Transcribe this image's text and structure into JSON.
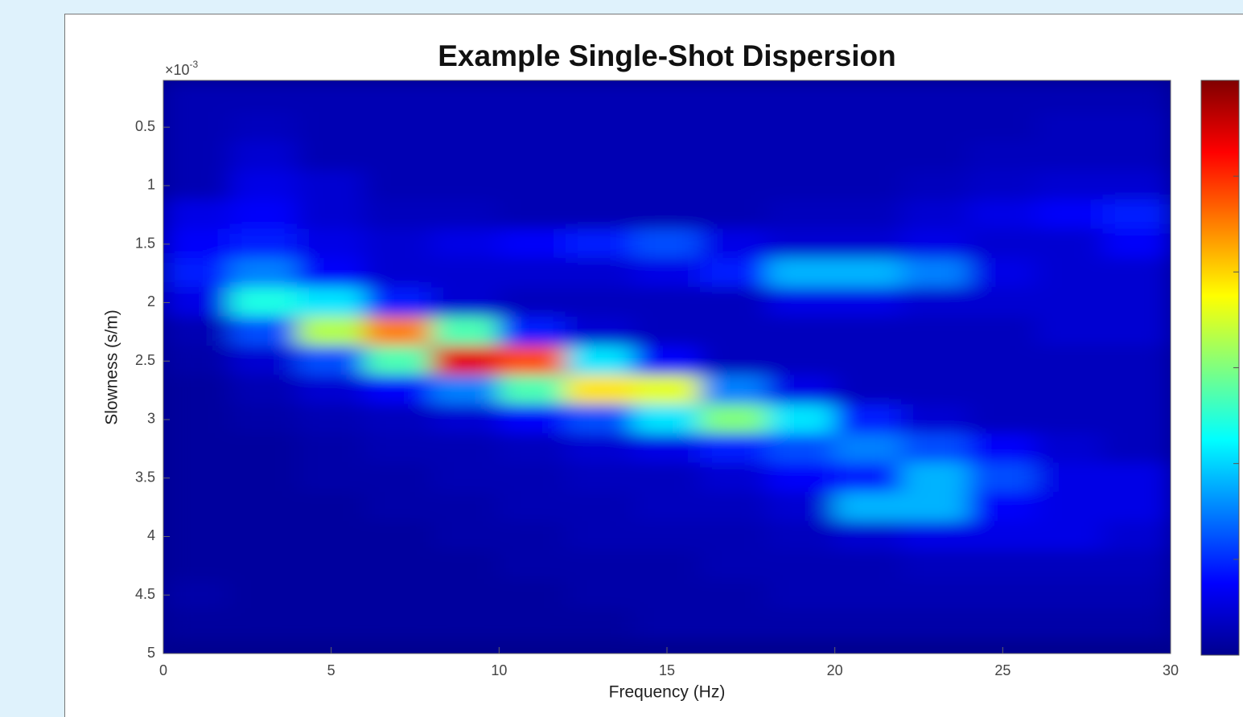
{
  "chart_data": {
    "type": "heatmap",
    "title": "Example Single-Shot Dispersion",
    "x_label": "Frequency (Hz)",
    "y_label": "Slowness (s/m)",
    "y_exponent_label": {
      "base": "×10",
      "exponent": "-3"
    },
    "xlim": [
      0,
      30
    ],
    "xticks": [
      0,
      5,
      10,
      15,
      20,
      25,
      30
    ],
    "ylim": [
      0.1,
      5
    ],
    "yticks": [
      0.5,
      1,
      1.5,
      2,
      2.5,
      3,
      3.5,
      4,
      4.5,
      5
    ],
    "y_reversed": true,
    "colormap": "jet",
    "clim": [
      0,
      1
    ],
    "colorbar": true,
    "x": [
      1,
      3,
      5,
      7,
      9,
      11,
      13,
      15,
      17,
      19,
      21,
      23,
      25,
      27,
      29
    ],
    "y": [
      0.25,
      0.5,
      0.75,
      1,
      1.25,
      1.5,
      1.75,
      2,
      2.25,
      2.5,
      2.75,
      3,
      3.25,
      3.5,
      3.75,
      4,
      4.25,
      4.5,
      4.75
    ],
    "z": [
      [
        0.05,
        0.05,
        0.05,
        0.05,
        0.05,
        0.05,
        0.05,
        0.05,
        0.05,
        0.05,
        0.05,
        0.05,
        0.05,
        0.05,
        0.05
      ],
      [
        0.05,
        0.06,
        0.05,
        0.05,
        0.05,
        0.05,
        0.05,
        0.05,
        0.05,
        0.05,
        0.05,
        0.05,
        0.05,
        0.06,
        0.06
      ],
      [
        0.05,
        0.08,
        0.05,
        0.05,
        0.05,
        0.05,
        0.05,
        0.05,
        0.05,
        0.05,
        0.05,
        0.05,
        0.06,
        0.06,
        0.06
      ],
      [
        0.05,
        0.1,
        0.08,
        0.05,
        0.05,
        0.05,
        0.05,
        0.05,
        0.05,
        0.05,
        0.05,
        0.06,
        0.07,
        0.08,
        0.08
      ],
      [
        0.1,
        0.12,
        0.08,
        0.06,
        0.06,
        0.05,
        0.05,
        0.05,
        0.05,
        0.06,
        0.06,
        0.08,
        0.1,
        0.12,
        0.15
      ],
      [
        0.12,
        0.15,
        0.1,
        0.08,
        0.1,
        0.12,
        0.15,
        0.2,
        0.1,
        0.08,
        0.08,
        0.1,
        0.08,
        0.08,
        0.12
      ],
      [
        0.15,
        0.25,
        0.12,
        0.08,
        0.08,
        0.08,
        0.08,
        0.1,
        0.15,
        0.3,
        0.3,
        0.25,
        0.1,
        0.08,
        0.08
      ],
      [
        0.1,
        0.4,
        0.35,
        0.15,
        0.08,
        0.06,
        0.06,
        0.06,
        0.06,
        0.1,
        0.1,
        0.08,
        0.08,
        0.08,
        0.08
      ],
      [
        0.05,
        0.2,
        0.55,
        0.75,
        0.45,
        0.15,
        0.08,
        0.06,
        0.06,
        0.06,
        0.06,
        0.06,
        0.06,
        0.08,
        0.08
      ],
      [
        0.04,
        0.08,
        0.2,
        0.45,
        0.9,
        0.8,
        0.35,
        0.12,
        0.06,
        0.06,
        0.06,
        0.06,
        0.06,
        0.06,
        0.06
      ],
      [
        0.03,
        0.05,
        0.08,
        0.12,
        0.25,
        0.45,
        0.65,
        0.6,
        0.25,
        0.1,
        0.06,
        0.06,
        0.06,
        0.06,
        0.06
      ],
      [
        0.03,
        0.04,
        0.05,
        0.06,
        0.08,
        0.12,
        0.2,
        0.35,
        0.5,
        0.35,
        0.15,
        0.08,
        0.06,
        0.06,
        0.06
      ],
      [
        0.03,
        0.03,
        0.04,
        0.05,
        0.05,
        0.06,
        0.08,
        0.1,
        0.15,
        0.2,
        0.25,
        0.2,
        0.12,
        0.08,
        0.06
      ],
      [
        0.03,
        0.03,
        0.04,
        0.04,
        0.05,
        0.05,
        0.06,
        0.06,
        0.08,
        0.12,
        0.15,
        0.3,
        0.2,
        0.1,
        0.1
      ],
      [
        0.03,
        0.03,
        0.03,
        0.04,
        0.04,
        0.05,
        0.05,
        0.06,
        0.06,
        0.08,
        0.3,
        0.3,
        0.12,
        0.1,
        0.1
      ],
      [
        0.03,
        0.03,
        0.03,
        0.03,
        0.04,
        0.04,
        0.05,
        0.05,
        0.05,
        0.06,
        0.08,
        0.1,
        0.1,
        0.1,
        0.08
      ],
      [
        0.03,
        0.03,
        0.03,
        0.03,
        0.03,
        0.04,
        0.04,
        0.04,
        0.05,
        0.05,
        0.05,
        0.06,
        0.06,
        0.06,
        0.06
      ],
      [
        0.04,
        0.03,
        0.03,
        0.03,
        0.03,
        0.03,
        0.04,
        0.04,
        0.04,
        0.05,
        0.05,
        0.05,
        0.05,
        0.05,
        0.05
      ],
      [
        0.03,
        0.03,
        0.03,
        0.03,
        0.03,
        0.03,
        0.03,
        0.04,
        0.04,
        0.04,
        0.04,
        0.04,
        0.04,
        0.04,
        0.04
      ]
    ]
  }
}
